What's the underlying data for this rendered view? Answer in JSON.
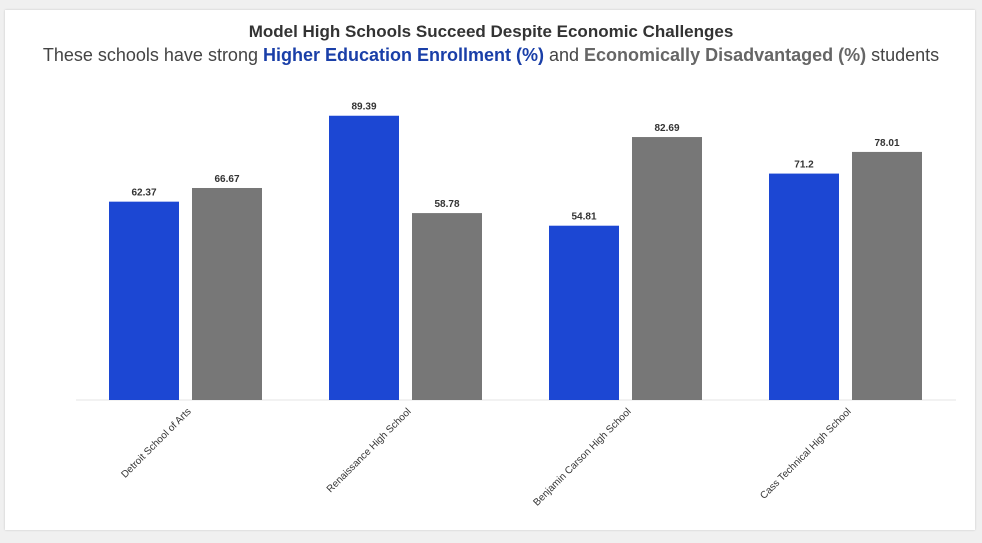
{
  "title": "Model High Schools Succeed Despite Economic Challenges",
  "subtitle": {
    "prefix": "These schools have strong ",
    "series1": "Higher Education Enrollment (%)",
    "middle": " and ",
    "series2": "Economically Disadvantaged (%)",
    "suffix": " students"
  },
  "chart_data": {
    "type": "bar",
    "categories": [
      "Detroit School of Arts",
      "Renaissance High School",
      "Benjamin Carson High School",
      "Cass Technical High School"
    ],
    "series": [
      {
        "name": "Higher Education Enrollment (%)",
        "values": [
          62.37,
          89.39,
          54.81,
          71.2
        ],
        "color": "#1c47d3"
      },
      {
        "name": "Economically Disadvantaged (%)",
        "values": [
          66.67,
          58.78,
          82.69,
          78.01
        ],
        "color": "#777777"
      }
    ],
    "value_labels": [
      [
        "62.37",
        "89.39",
        "54.81",
        "71.2"
      ],
      [
        "66.67",
        "58.78",
        "82.69",
        "78.01"
      ]
    ],
    "ylim": [
      0,
      100
    ],
    "grid": false,
    "legend": "none"
  }
}
